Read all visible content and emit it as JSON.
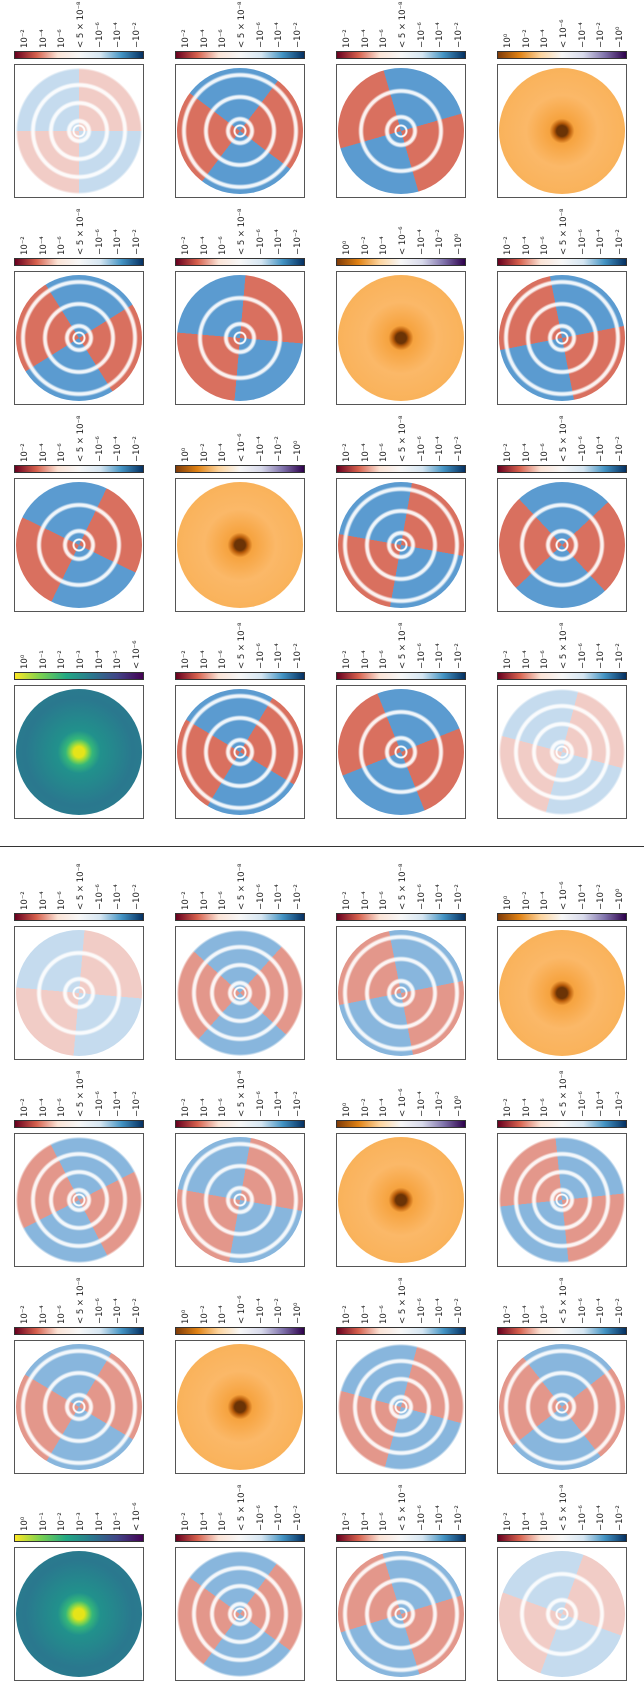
{
  "figures": [
    {
      "panels": [
        {
          "cmap": "RdBu",
          "colorbar_ticks": [
            "10⁻²",
            "10⁻⁴",
            "10⁻⁶",
            "< 5 × 10⁻⁸",
            "−10⁻⁶",
            "−10⁻⁴",
            "−10⁻²"
          ]
        },
        {
          "cmap": "RdBu",
          "colorbar_ticks": [
            "10⁻²",
            "10⁻⁴",
            "10⁻⁶",
            "< 5 × 10⁻⁸",
            "−10⁻⁶",
            "−10⁻⁴",
            "−10⁻²"
          ]
        },
        {
          "cmap": "RdBu",
          "colorbar_ticks": [
            "10⁻²",
            "10⁻⁴",
            "10⁻⁶",
            "< 5 × 10⁻⁸",
            "−10⁻⁶",
            "−10⁻⁴",
            "−10⁻²"
          ]
        },
        {
          "cmap": "PuOr",
          "colorbar_ticks": [
            "10⁰",
            "10⁻²",
            "10⁻⁴",
            "< 10⁻⁶",
            "−10⁻⁴",
            "−10⁻²",
            "−10⁰"
          ]
        },
        {
          "cmap": "RdBu",
          "colorbar_ticks": [
            "10⁻²",
            "10⁻⁴",
            "10⁻⁶",
            "< 5 × 10⁻⁸",
            "−10⁻⁶",
            "−10⁻⁴",
            "−10⁻²"
          ]
        },
        {
          "cmap": "RdBu",
          "colorbar_ticks": [
            "10⁻²",
            "10⁻⁴",
            "10⁻⁶",
            "< 5 × 10⁻⁸",
            "−10⁻⁶",
            "−10⁻⁴",
            "−10⁻²"
          ]
        },
        {
          "cmap": "PuOr",
          "colorbar_ticks": [
            "10⁰",
            "10⁻²",
            "10⁻⁴",
            "< 10⁻⁶",
            "−10⁻⁴",
            "−10⁻²",
            "−10⁰"
          ]
        },
        {
          "cmap": "RdBu",
          "colorbar_ticks": [
            "10⁻²",
            "10⁻⁴",
            "10⁻⁶",
            "< 5 × 10⁻⁸",
            "−10⁻⁶",
            "−10⁻⁴",
            "−10⁻²"
          ]
        },
        {
          "cmap": "RdBu",
          "colorbar_ticks": [
            "10⁻²",
            "10⁻⁴",
            "10⁻⁶",
            "< 5 × 10⁻⁸",
            "−10⁻⁶",
            "−10⁻⁴",
            "−10⁻²"
          ]
        },
        {
          "cmap": "PuOr",
          "colorbar_ticks": [
            "10⁰",
            "10⁻²",
            "10⁻⁴",
            "< 10⁻⁶",
            "−10⁻⁴",
            "−10⁻²",
            "−10⁰"
          ]
        },
        {
          "cmap": "RdBu",
          "colorbar_ticks": [
            "10⁻²",
            "10⁻⁴",
            "10⁻⁶",
            "< 5 × 10⁻⁸",
            "−10⁻⁶",
            "−10⁻⁴",
            "−10⁻²"
          ]
        },
        {
          "cmap": "RdBu",
          "colorbar_ticks": [
            "10⁻²",
            "10⁻⁴",
            "10⁻⁶",
            "< 5 × 10⁻⁸",
            "−10⁻⁶",
            "−10⁻⁴",
            "−10⁻²"
          ]
        },
        {
          "cmap": "viridis",
          "colorbar_ticks": [
            "10⁰",
            "10⁻¹",
            "10⁻²",
            "10⁻³",
            "10⁻⁴",
            "10⁻⁵",
            "< 10⁻⁶"
          ]
        },
        {
          "cmap": "RdBu",
          "colorbar_ticks": [
            "10⁻²",
            "10⁻⁴",
            "10⁻⁶",
            "< 5 × 10⁻⁸",
            "−10⁻⁶",
            "−10⁻⁴",
            "−10⁻²"
          ]
        },
        {
          "cmap": "RdBu",
          "colorbar_ticks": [
            "10⁻²",
            "10⁻⁴",
            "10⁻⁶",
            "< 5 × 10⁻⁸",
            "−10⁻⁶",
            "−10⁻⁴",
            "−10⁻²"
          ]
        },
        {
          "cmap": "RdBu",
          "colorbar_ticks": [
            "10⁻²",
            "10⁻⁴",
            "10⁻⁶",
            "< 5 × 10⁻⁸",
            "−10⁻⁶",
            "−10⁻⁴",
            "−10⁻²"
          ]
        }
      ]
    },
    {
      "panels": [
        {
          "cmap": "RdBu",
          "colorbar_ticks": [
            "10⁻²",
            "10⁻⁴",
            "10⁻⁶",
            "< 5 × 10⁻⁸",
            "−10⁻⁶",
            "−10⁻⁴",
            "−10⁻²"
          ]
        },
        {
          "cmap": "RdBu",
          "colorbar_ticks": [
            "10⁻²",
            "10⁻⁴",
            "10⁻⁶",
            "< 5 × 10⁻⁸",
            "−10⁻⁶",
            "−10⁻⁴",
            "−10⁻²"
          ]
        },
        {
          "cmap": "RdBu",
          "colorbar_ticks": [
            "10⁻²",
            "10⁻⁴",
            "10⁻⁶",
            "< 5 × 10⁻⁸",
            "−10⁻⁶",
            "−10⁻⁴",
            "−10⁻²"
          ]
        },
        {
          "cmap": "PuOr",
          "colorbar_ticks": [
            "10⁰",
            "10⁻²",
            "10⁻⁴",
            "< 10⁻⁶",
            "−10⁻⁴",
            "−10⁻²",
            "−10⁰"
          ]
        },
        {
          "cmap": "RdBu",
          "colorbar_ticks": [
            "10⁻²",
            "10⁻⁴",
            "10⁻⁶",
            "< 5 × 10⁻⁸",
            "−10⁻⁶",
            "−10⁻⁴",
            "−10⁻²"
          ]
        },
        {
          "cmap": "RdBu",
          "colorbar_ticks": [
            "10⁻²",
            "10⁻⁴",
            "10⁻⁶",
            "< 5 × 10⁻⁸",
            "−10⁻⁶",
            "−10⁻⁴",
            "−10⁻²"
          ]
        },
        {
          "cmap": "PuOr",
          "colorbar_ticks": [
            "10⁰",
            "10⁻²",
            "10⁻⁴",
            "< 10⁻⁶",
            "−10⁻⁴",
            "−10⁻²",
            "−10⁰"
          ]
        },
        {
          "cmap": "RdBu",
          "colorbar_ticks": [
            "10⁻²",
            "10⁻⁴",
            "10⁻⁶",
            "< 5 × 10⁻⁸",
            "−10⁻⁶",
            "−10⁻⁴",
            "−10⁻²"
          ]
        },
        {
          "cmap": "RdBu",
          "colorbar_ticks": [
            "10⁻²",
            "10⁻⁴",
            "10⁻⁶",
            "< 5 × 10⁻⁸",
            "−10⁻⁶",
            "−10⁻⁴",
            "−10⁻²"
          ]
        },
        {
          "cmap": "PuOr",
          "colorbar_ticks": [
            "10⁰",
            "10⁻²",
            "10⁻⁴",
            "< 10⁻⁶",
            "−10⁻⁴",
            "−10⁻²",
            "−10⁰"
          ]
        },
        {
          "cmap": "RdBu",
          "colorbar_ticks": [
            "10⁻²",
            "10⁻⁴",
            "10⁻⁶",
            "< 5 × 10⁻⁸",
            "−10⁻⁶",
            "−10⁻⁴",
            "−10⁻²"
          ]
        },
        {
          "cmap": "RdBu",
          "colorbar_ticks": [
            "10⁻²",
            "10⁻⁴",
            "10⁻⁶",
            "< 5 × 10⁻⁸",
            "−10⁻⁶",
            "−10⁻⁴",
            "−10⁻²"
          ]
        },
        {
          "cmap": "viridis",
          "colorbar_ticks": [
            "10⁰",
            "10⁻¹",
            "10⁻²",
            "10⁻³",
            "10⁻⁴",
            "10⁻⁵",
            "< 10⁻⁶"
          ]
        },
        {
          "cmap": "RdBu",
          "colorbar_ticks": [
            "10⁻²",
            "10⁻⁴",
            "10⁻⁶",
            "< 5 × 10⁻⁸",
            "−10⁻⁶",
            "−10⁻⁴",
            "−10⁻²"
          ]
        },
        {
          "cmap": "RdBu",
          "colorbar_ticks": [
            "10⁻²",
            "10⁻⁴",
            "10⁻⁶",
            "< 5 × 10⁻⁸",
            "−10⁻⁶",
            "−10⁻⁴",
            "−10⁻²"
          ]
        },
        {
          "cmap": "RdBu",
          "colorbar_ticks": [
            "10⁻²",
            "10⁻⁴",
            "10⁻⁶",
            "< 5 × 10⁻⁸",
            "−10⁻⁶",
            "−10⁻⁴",
            "−10⁻²"
          ]
        }
      ]
    }
  ]
}
